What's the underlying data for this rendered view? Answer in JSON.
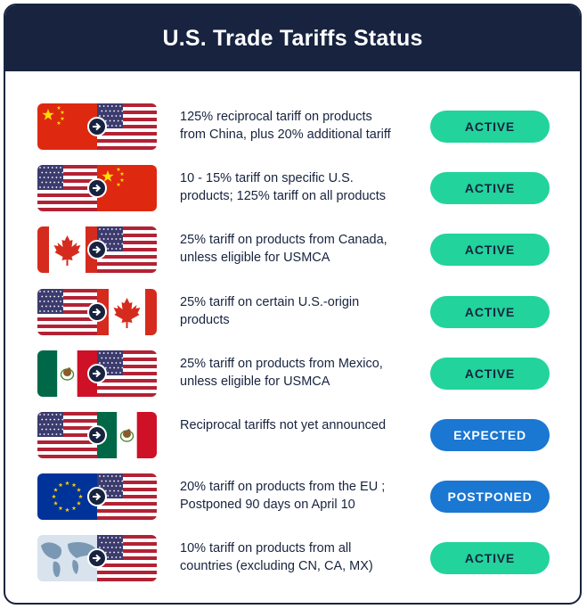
{
  "header": {
    "title": "U.S. Trade Tariffs Status"
  },
  "colors": {
    "navy": "#17233f",
    "active_bg": "#22d39b",
    "active_text": "#17233f",
    "blue_bg": "#1a77d2",
    "blue_text": "#ffffff"
  },
  "rows": [
    {
      "from": "china",
      "to": "usa",
      "line1": "125% reciprocal tariff on products",
      "line2": "from China, plus 20% additional tariff",
      "status": "ACTIVE"
    },
    {
      "from": "usa",
      "to": "china",
      "line1": "10 - 15% tariff on specific U.S.",
      "line2": "products; 125% tariff on all products",
      "status": "ACTIVE"
    },
    {
      "from": "canada",
      "to": "usa",
      "line1": "25% tariff on products from Canada,",
      "line2": "unless eligible for USMCA",
      "status": "ACTIVE"
    },
    {
      "from": "usa",
      "to": "canada",
      "line1": "25% tariff on certain U.S.-origin",
      "line2": "products",
      "status": "ACTIVE"
    },
    {
      "from": "mexico",
      "to": "usa",
      "line1": "25% tariff on products from Mexico,",
      "line2": "unless eligible for USMCA",
      "status": "ACTIVE"
    },
    {
      "from": "usa",
      "to": "mexico",
      "line1": "Reciprocal tariffs not yet announced",
      "line2": "",
      "status": "EXPECTED"
    },
    {
      "from": "eu",
      "to": "usa",
      "line1": "20% tariff on products from the EU ;",
      "line2": "Postponed 90 days on April 10",
      "status": "POSTPONED"
    },
    {
      "from": "world",
      "to": "usa",
      "line1": "10% tariff on products from all",
      "line2": "countries (excluding CN, CA, MX)",
      "status": "ACTIVE"
    }
  ]
}
